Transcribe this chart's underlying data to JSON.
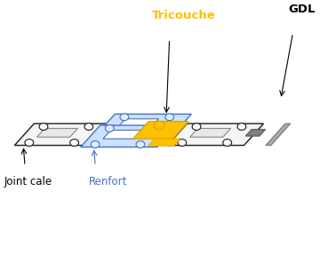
{
  "background_color": "#ffffff",
  "labels": {
    "joint_cale": "Joint cale",
    "renfort": "Renfort",
    "tricouche": "Tricouche",
    "gdl": "GDL"
  },
  "label_colors": {
    "joint_cale": "#000000",
    "renfort": "#4472c4",
    "tricouche": "#ffc000",
    "gdl": "#000000"
  },
  "plate_edge": "#1a1a1a",
  "plate_fill": "#f5f5f5",
  "renfort_stroke": "#4472c4",
  "renfort_fill": "#cce0ff",
  "tricouche_color": "#ffc000",
  "gdl_gray": "#808080",
  "hole_color": "#000000"
}
